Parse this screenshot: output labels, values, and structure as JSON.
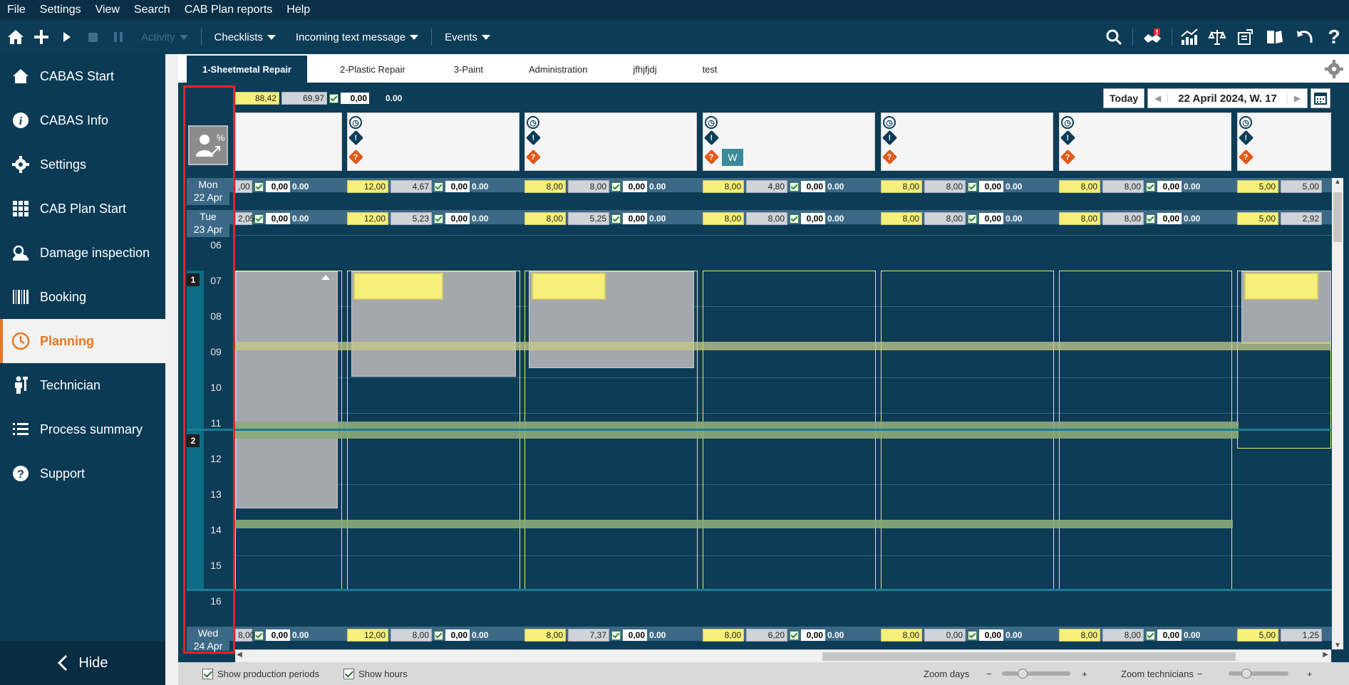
{
  "menubar": [
    "File",
    "Settings",
    "View",
    "Search",
    "CAB Plan reports",
    "Help"
  ],
  "toolbar": {
    "activity": "Activity",
    "checklists": "Checklists",
    "incoming": "Incoming text message",
    "events": "Events"
  },
  "sidebar": {
    "items": [
      {
        "label": "CABAS Start",
        "icon": "home-icon"
      },
      {
        "label": "CABAS Info",
        "icon": "info-icon"
      },
      {
        "label": "Settings",
        "icon": "gear-icon"
      },
      {
        "label": "CAB Plan Start",
        "icon": "grid-icon"
      },
      {
        "label": "Damage inspection",
        "icon": "car-inspect-icon"
      },
      {
        "label": "Booking",
        "icon": "booking-icon"
      },
      {
        "label": "Planning",
        "icon": "clock-icon"
      },
      {
        "label": "Technician",
        "icon": "technician-icon"
      },
      {
        "label": "Process summary",
        "icon": "list-icon"
      },
      {
        "label": "Support",
        "icon": "help-icon"
      }
    ],
    "hide": "Hide"
  },
  "tabs": [
    "1-Sheetmetal Repair",
    "2-Plastic Repair",
    "3-Paint",
    "Administration",
    "jfhjfjdj",
    "test"
  ],
  "header": {
    "v1": "88,42",
    "v2": "69,97",
    "v3": "0,00",
    "v4": "0.00",
    "today": "Today",
    "date": "22 April 2024, W. 17"
  },
  "days": {
    "mon": {
      "day": "Mon",
      "date": "22 Apr"
    },
    "tue": {
      "day": "Tue",
      "date": "23 Apr"
    },
    "wed": {
      "day": "Wed",
      "date": "24 Apr"
    }
  },
  "hours": [
    "06",
    "07",
    "08",
    "09",
    "10",
    "11",
    "12",
    "13",
    "14",
    "15",
    "16"
  ],
  "periods": [
    "1",
    "2"
  ],
  "rows": {
    "mon": [
      [
        "",
        ",00"
      ],
      [
        "12,00",
        "4,67"
      ],
      [
        "8,00",
        "8,00"
      ],
      [
        "8,00",
        "4,80"
      ],
      [
        "8,00",
        "8,00"
      ],
      [
        "8,00",
        "8,00"
      ],
      [
        "5,00",
        "5,00"
      ]
    ],
    "tue": [
      [
        "",
        "2,05"
      ],
      [
        "12,00",
        "5,23"
      ],
      [
        "8,00",
        "5,25"
      ],
      [
        "8,00",
        "8,00"
      ],
      [
        "8,00",
        "8,00"
      ],
      [
        "8,00",
        "8,00"
      ],
      [
        "5,00",
        "2,92"
      ]
    ],
    "wed": [
      [
        "",
        "8,00"
      ],
      [
        "12,00",
        "8,00"
      ],
      [
        "8,00",
        "7,37"
      ],
      [
        "8,00",
        "6,20"
      ],
      [
        "8,00",
        "0,00"
      ],
      [
        "8,00",
        "8,00"
      ],
      [
        "5,00",
        "1,25"
      ]
    ]
  },
  "zero": "0,00",
  "zero2": "0.00",
  "card_badge": "W",
  "status": {
    "prod": "Show production periods",
    "hours": "Show hours",
    "zoom_days": "Zoom days",
    "zoom_tech": "Zoom technicians",
    "minus": "−",
    "plus": "+"
  }
}
